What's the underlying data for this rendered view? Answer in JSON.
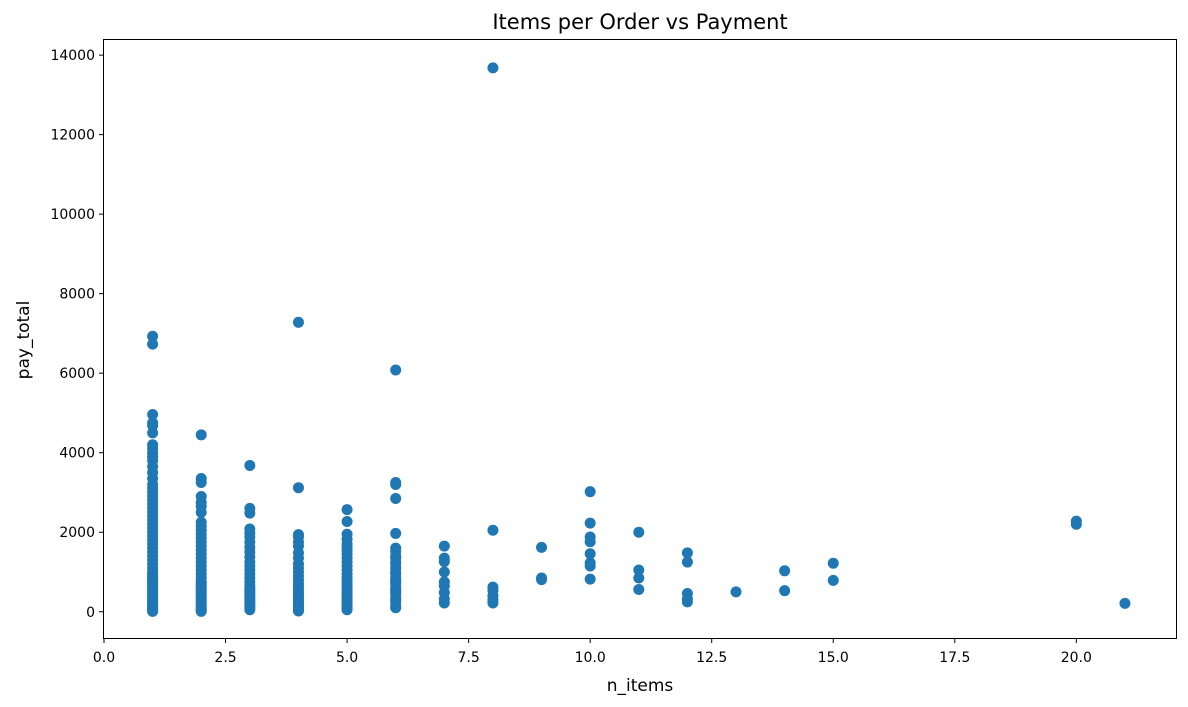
{
  "chart_data": {
    "type": "scatter",
    "title": "Items per Order vs Payment",
    "xlabel": "n_items",
    "ylabel": "pay_total",
    "xlim": [
      0,
      22.05
    ],
    "ylim": [
      -660,
      14380
    ],
    "xticks": [
      0.0,
      2.5,
      5.0,
      7.5,
      10.0,
      12.5,
      15.0,
      17.5,
      20.0
    ],
    "xtick_labels": [
      "0.0",
      "2.5",
      "5.0",
      "7.5",
      "10.0",
      "12.5",
      "15.0",
      "17.5",
      "20.0"
    ],
    "yticks": [
      0,
      2000,
      4000,
      6000,
      8000,
      10000,
      12000,
      14000
    ],
    "ytick_labels": [
      "0",
      "2000",
      "4000",
      "6000",
      "8000",
      "10000",
      "12000",
      "14000"
    ],
    "grid": false,
    "marker_color": "#1f77b4",
    "series": [
      {
        "x": [
          1,
          1,
          1,
          1,
          1,
          1,
          1,
          1,
          1,
          1,
          1,
          1,
          1,
          1,
          1,
          1,
          1,
          1,
          1,
          1,
          1,
          1,
          1,
          1,
          1,
          1,
          1,
          1,
          1,
          1,
          1,
          1,
          1,
          1,
          1,
          1,
          1,
          1,
          1,
          1,
          1,
          1,
          1,
          1,
          1,
          1,
          1,
          1,
          1,
          1,
          1,
          1,
          1,
          1,
          1,
          1,
          1,
          1,
          1,
          2,
          2,
          2,
          2,
          2,
          2,
          2,
          2,
          2,
          2,
          2,
          2,
          2,
          2,
          2,
          2,
          2,
          2,
          2,
          2,
          2,
          2,
          2,
          2,
          2,
          2,
          2,
          2,
          2,
          2,
          2,
          2,
          2,
          2,
          2,
          2,
          2,
          2,
          2,
          3,
          3,
          3,
          3,
          3,
          3,
          3,
          3,
          3,
          3,
          3,
          3,
          3,
          3,
          3,
          3,
          3,
          3,
          3,
          3,
          3,
          3,
          3,
          3,
          3,
          3,
          3,
          3,
          3,
          4,
          4,
          4,
          4,
          4,
          4,
          4,
          4,
          4,
          4,
          4,
          4,
          4,
          4,
          4,
          4,
          4,
          4,
          4,
          4,
          4,
          4,
          4,
          4,
          4,
          4,
          4,
          5,
          5,
          5,
          5,
          5,
          5,
          5,
          5,
          5,
          5,
          5,
          5,
          5,
          5,
          5,
          5,
          5,
          5,
          5,
          5,
          5,
          5,
          5,
          5,
          5,
          5,
          5,
          6,
          6,
          6,
          6,
          6,
          6,
          6,
          6,
          6,
          6,
          6,
          6,
          6,
          6,
          6,
          6,
          6,
          6,
          6,
          6,
          6,
          6,
          6,
          6,
          6,
          6,
          6,
          7,
          7,
          7,
          7,
          7,
          7,
          7,
          7,
          7,
          8,
          8,
          8,
          8,
          8,
          8,
          8,
          9,
          9,
          9,
          10,
          10,
          10,
          10,
          10,
          10,
          10,
          10,
          11,
          11,
          11,
          11,
          12,
          12,
          12,
          12,
          12,
          13,
          14,
          14,
          15,
          15,
          20,
          20,
          21
        ],
        "y": [
          6930,
          6730,
          4960,
          4750,
          4680,
          4500,
          4200,
          4100,
          4000,
          3900,
          3800,
          3650,
          3500,
          3350,
          3200,
          3100,
          3000,
          2900,
          2800,
          2700,
          2600,
          2500,
          2400,
          2300,
          2200,
          2100,
          2000,
          1900,
          1800,
          1700,
          1600,
          1500,
          1400,
          1300,
          1200,
          1100,
          1000,
          950,
          900,
          850,
          800,
          750,
          700,
          650,
          600,
          550,
          500,
          450,
          400,
          350,
          300,
          250,
          200,
          150,
          120,
          90,
          60,
          30,
          10,
          4450,
          3350,
          3250,
          2900,
          2750,
          2650,
          2500,
          2250,
          2150,
          2050,
          1950,
          1850,
          1750,
          1650,
          1550,
          1450,
          1350,
          1250,
          1150,
          1050,
          950,
          850,
          750,
          700,
          650,
          600,
          550,
          500,
          450,
          400,
          350,
          300,
          250,
          200,
          150,
          100,
          60,
          30,
          10,
          3680,
          2600,
          2480,
          2080,
          1980,
          1880,
          1750,
          1620,
          1500,
          1380,
          1250,
          1150,
          1050,
          950,
          850,
          750,
          650,
          600,
          550,
          500,
          450,
          400,
          350,
          300,
          250,
          200,
          150,
          100,
          50,
          7280,
          3120,
          1940,
          1880,
          1750,
          1650,
          1480,
          1350,
          1200,
          1100,
          1000,
          900,
          800,
          720,
          650,
          580,
          500,
          440,
          380,
          320,
          260,
          200,
          150,
          110,
          80,
          50,
          20,
          2570,
          2270,
          1950,
          1820,
          1700,
          1620,
          1550,
          1450,
          1350,
          1250,
          1150,
          1050,
          950,
          850,
          780,
          700,
          620,
          550,
          480,
          420,
          360,
          300,
          240,
          180,
          130,
          90,
          50,
          6080,
          3250,
          3200,
          2850,
          1970,
          1600,
          1520,
          1400,
          1350,
          1250,
          1200,
          1100,
          1000,
          950,
          850,
          800,
          750,
          700,
          600,
          550,
          500,
          450,
          350,
          300,
          250,
          150,
          100,
          1650,
          1350,
          1260,
          1000,
          750,
          650,
          480,
          320,
          220,
          13680,
          2050,
          620,
          540,
          400,
          300,
          220,
          1620,
          850,
          810,
          3020,
          2230,
          1880,
          1760,
          1460,
          1230,
          1150,
          820,
          2000,
          1050,
          850,
          560,
          1480,
          1250,
          460,
          320,
          250,
          500,
          1030,
          530,
          1220,
          790,
          2280,
          2200,
          210
        ]
      }
    ]
  }
}
